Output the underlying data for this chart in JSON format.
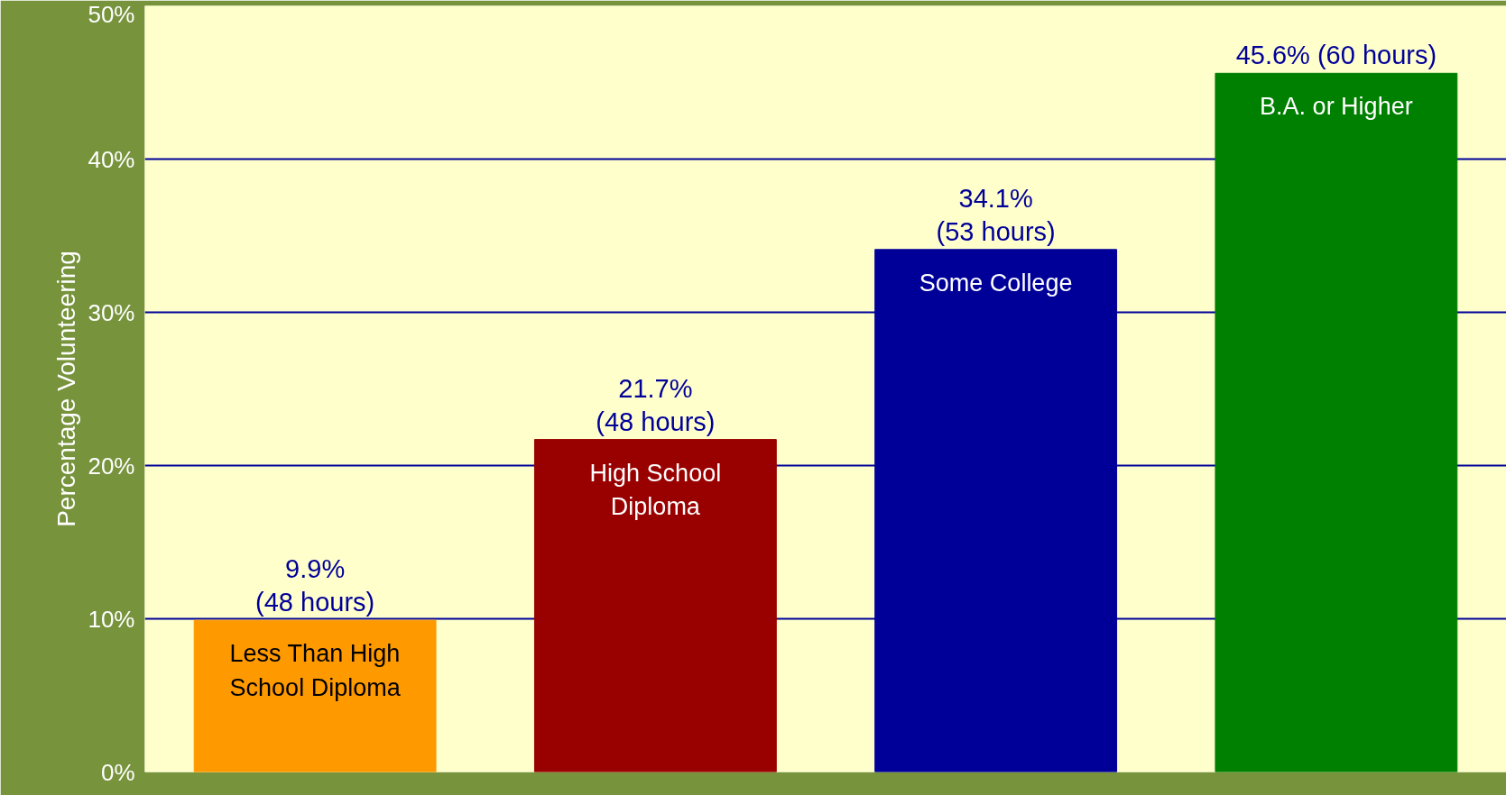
{
  "chart_data": {
    "type": "bar",
    "ylabel": "Percentage Volunteering",
    "categories": [
      "Less Than High School Diploma",
      "High School Diploma",
      "Some College",
      "B.A. or Higher"
    ],
    "values": [
      9.9,
      21.7,
      34.1,
      45.6
    ],
    "colors": [
      "#ff9900",
      "#990000",
      "#000099",
      "#008000"
    ],
    "value_labels": [
      "9.9%\n(48 hours)",
      "21.7%\n(48 hours)",
      "34.1%\n(53 hours)",
      "45.6% (60 hours)"
    ],
    "ylim": [
      0,
      50
    ],
    "yticks": [
      {
        "value": 0,
        "label": "0%"
      },
      {
        "value": 10,
        "label": "10%"
      },
      {
        "value": 20,
        "label": "20%"
      },
      {
        "value": 30,
        "label": "30%"
      },
      {
        "value": 40,
        "label": "40%"
      },
      {
        "value": 50,
        "label": "50%"
      }
    ],
    "grid": "y"
  }
}
